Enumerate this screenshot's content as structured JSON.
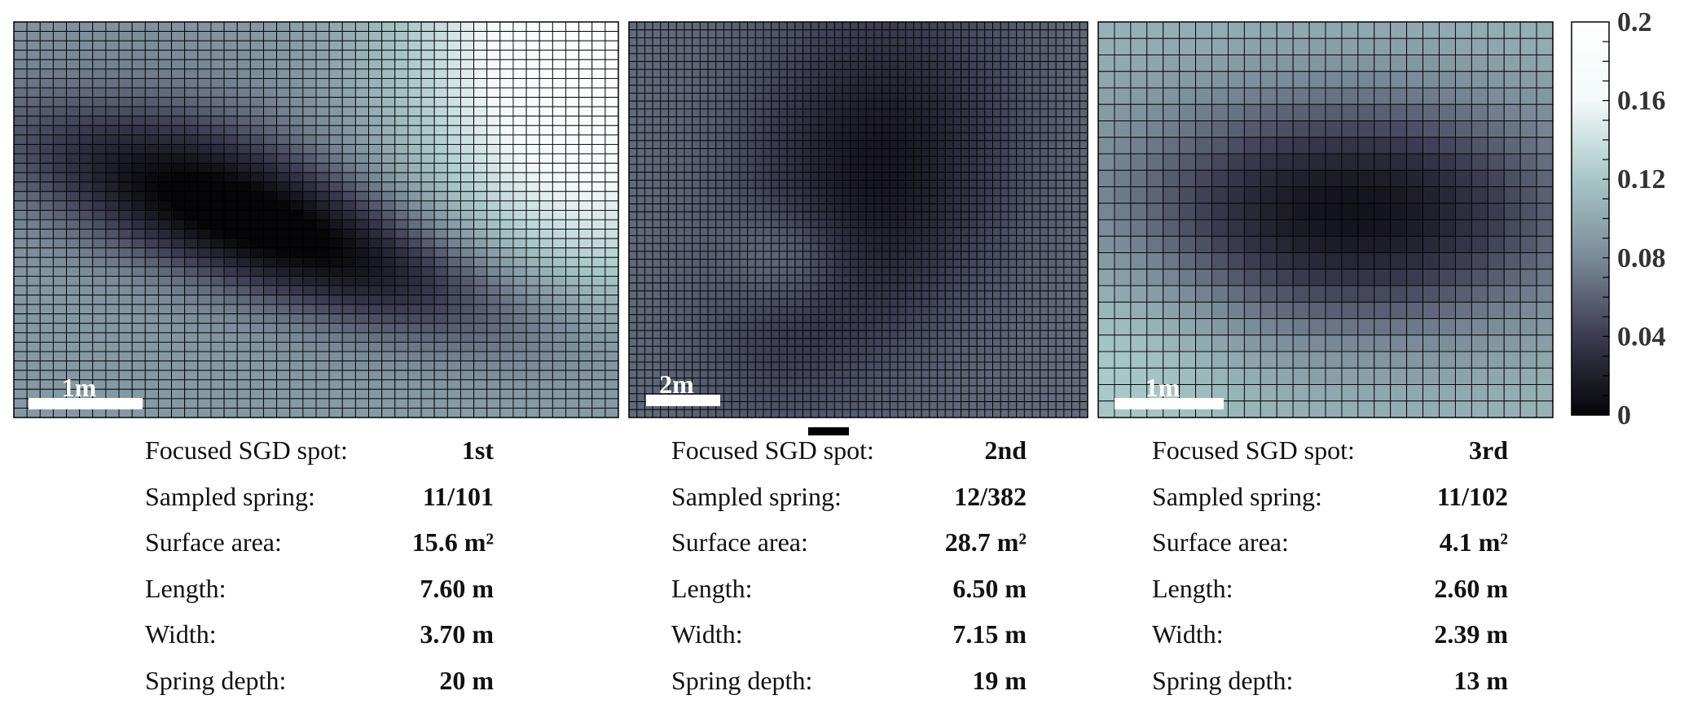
{
  "colors": {
    "colormap": [
      "#050507",
      "#3b3a50",
      "#7a8a98",
      "#a7c7c7",
      "#f4f9f9",
      "#ffffff"
    ],
    "grid_line": "#000000",
    "scale_bar": "#ffffff"
  },
  "chart_data": {
    "type": "heatmap",
    "colorbar": {
      "min": 0,
      "max": 0.2,
      "ticks": [
        "0.2",
        "0.16",
        "0.12",
        "0.08",
        "0.04",
        "0"
      ]
    },
    "panels": [
      {
        "scale_label": "1m",
        "grid": {
          "cols": 46,
          "rows": 42
        },
        "field": {
          "base": 0.09,
          "blobs": [
            {
              "cx": 0.47,
              "cy": 0.55,
              "rx": 0.34,
              "ry": 0.11,
              "rot": 0.52,
              "amp": -0.085
            },
            {
              "cx": 0.3,
              "cy": 0.35,
              "rx": 0.22,
              "ry": 0.16,
              "rot": 0.5,
              "amp": -0.03
            },
            {
              "cx": 0.95,
              "cy": 0.08,
              "rx": 0.2,
              "ry": 0.4,
              "rot": 0.0,
              "amp": 0.1
            }
          ]
        }
      },
      {
        "scale_label": "2m",
        "grid": {
          "cols": 58,
          "rows": 50
        },
        "field": {
          "base": 0.065,
          "blobs": [
            {
              "cx": 0.55,
              "cy": 0.35,
              "rx": 0.2,
              "ry": 0.28,
              "rot": 0.1,
              "amp": -0.05
            },
            {
              "cx": 0.35,
              "cy": 0.75,
              "rx": 0.15,
              "ry": 0.2,
              "rot": 0.3,
              "amp": -0.02
            },
            {
              "cx": 0.35,
              "cy": 0.6,
              "rx": 0.1,
              "ry": 0.1,
              "rot": 0.0,
              "amp": 0.03
            }
          ]
        }
      },
      {
        "scale_label": "1m",
        "grid": {
          "cols": 28,
          "rows": 24
        },
        "field": {
          "base": 0.11,
          "blobs": [
            {
              "cx": 0.55,
              "cy": 0.48,
              "rx": 0.38,
              "ry": 0.22,
              "rot": 0.0,
              "amp": -0.1
            },
            {
              "cx": 0.05,
              "cy": 0.8,
              "rx": 0.2,
              "ry": 0.2,
              "rot": 0.0,
              "amp": 0.02
            }
          ]
        }
      }
    ]
  },
  "tables": [
    {
      "rows": [
        {
          "label": "Focused SGD spot:",
          "value": "1st"
        },
        {
          "label": "Sampled spring:",
          "value": "11/101"
        },
        {
          "label": "Surface area:",
          "value": "15.6 m²"
        },
        {
          "label": "Length:",
          "value": "7.60 m"
        },
        {
          "label": "Width:",
          "value": "3.70 m"
        },
        {
          "label": "Spring depth:",
          "value": "20 m"
        }
      ]
    },
    {
      "rows": [
        {
          "label": "Focused SGD spot:",
          "value": "2nd"
        },
        {
          "label": "Sampled spring:",
          "value": "12/382"
        },
        {
          "label": "Surface area:",
          "value": "28.7 m²"
        },
        {
          "label": "Length:",
          "value": "6.50 m"
        },
        {
          "label": "Width:",
          "value": "7.15 m"
        },
        {
          "label": "Spring depth:",
          "value": "19 m"
        }
      ]
    },
    {
      "rows": [
        {
          "label": "Focused SGD spot:",
          "value": "3rd"
        },
        {
          "label": "Sampled spring:",
          "value": "11/102"
        },
        {
          "label": "Surface area:",
          "value": "4.1 m²"
        },
        {
          "label": "Length:",
          "value": "2.60 m"
        },
        {
          "label": "Width:",
          "value": "2.39 m"
        },
        {
          "label": "Spring depth:",
          "value": "13 m"
        }
      ]
    }
  ]
}
